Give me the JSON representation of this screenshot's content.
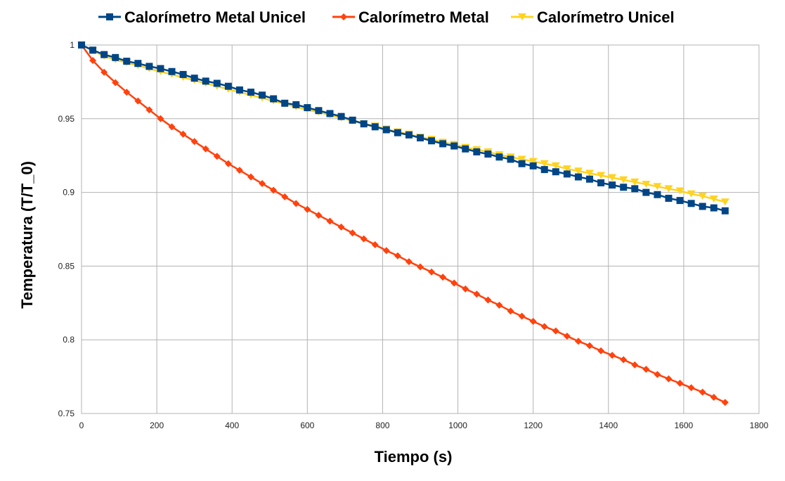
{
  "chart_data": {
    "type": "line",
    "title": "",
    "xlabel": "Tiempo (s)",
    "ylabel": "Temperatura (T/T_0)",
    "xlim": [
      0,
      1800
    ],
    "ylim": [
      0.75,
      1.0
    ],
    "x_ticks": [
      "0",
      "200",
      "400",
      "600",
      "800",
      "1000",
      "1200",
      "1400",
      "1600",
      "1800"
    ],
    "y_ticks": [
      "0.75",
      "0.8",
      "0.85",
      "0.9",
      "0.95",
      "1"
    ],
    "grid": true,
    "legend_position": "top",
    "x": [
      0,
      30,
      60,
      90,
      120,
      150,
      180,
      210,
      240,
      270,
      300,
      330,
      360,
      390,
      420,
      450,
      480,
      510,
      540,
      570,
      600,
      630,
      660,
      690,
      720,
      750,
      780,
      810,
      840,
      870,
      900,
      930,
      960,
      990,
      1020,
      1050,
      1080,
      1110,
      1140,
      1170,
      1200,
      1230,
      1260,
      1290,
      1320,
      1350,
      1380,
      1410,
      1440,
      1470,
      1500,
      1530,
      1560,
      1590,
      1620,
      1650,
      1680,
      1710
    ],
    "series": [
      {
        "name": "Calorímetro Metal Unicel",
        "color": "#004586",
        "marker": "square",
        "values": [
          1.0,
          0.9965,
          0.9935,
          0.9915,
          0.989,
          0.9875,
          0.9855,
          0.984,
          0.982,
          0.98,
          0.9775,
          0.9755,
          0.974,
          0.972,
          0.9695,
          0.968,
          0.966,
          0.9635,
          0.9605,
          0.9595,
          0.9575,
          0.9555,
          0.9535,
          0.9515,
          0.949,
          0.9465,
          0.9445,
          0.9425,
          0.9405,
          0.939,
          0.937,
          0.935,
          0.933,
          0.9315,
          0.9295,
          0.9275,
          0.926,
          0.924,
          0.9225,
          0.9195,
          0.918,
          0.9155,
          0.914,
          0.9125,
          0.9105,
          0.909,
          0.9065,
          0.905,
          0.9035,
          0.9025,
          0.9,
          0.8985,
          0.896,
          0.8945,
          0.8925,
          0.8905,
          0.8895,
          0.8875
        ]
      },
      {
        "name": "Calorímetro Metal",
        "color": "#ff420e",
        "marker": "diamond",
        "values": [
          1.0,
          0.9895,
          0.9815,
          0.9745,
          0.968,
          0.962,
          0.956,
          0.95,
          0.9445,
          0.9395,
          0.9345,
          0.9295,
          0.9245,
          0.9195,
          0.915,
          0.9105,
          0.906,
          0.9015,
          0.897,
          0.8925,
          0.8885,
          0.8845,
          0.8805,
          0.8765,
          0.8725,
          0.8685,
          0.8645,
          0.8605,
          0.857,
          0.853,
          0.8495,
          0.846,
          0.8425,
          0.8385,
          0.8345,
          0.831,
          0.827,
          0.8235,
          0.8195,
          0.816,
          0.8125,
          0.809,
          0.806,
          0.8025,
          0.799,
          0.796,
          0.7925,
          0.7895,
          0.7865,
          0.783,
          0.78,
          0.7765,
          0.7735,
          0.7705,
          0.7675,
          0.7645,
          0.761,
          0.7575
        ]
      },
      {
        "name": "Calorímetro Unicel",
        "color": "#ffd320",
        "marker": "triangle-down",
        "values": [
          1.0,
          0.996,
          0.9925,
          0.99,
          0.988,
          0.986,
          0.984,
          0.982,
          0.98,
          0.978,
          0.976,
          0.974,
          0.972,
          0.97,
          0.968,
          0.966,
          0.964,
          0.962,
          0.96,
          0.958,
          0.956,
          0.9545,
          0.9525,
          0.9505,
          0.9485,
          0.9465,
          0.945,
          0.943,
          0.941,
          0.9395,
          0.9375,
          0.936,
          0.934,
          0.9325,
          0.9305,
          0.929,
          0.9275,
          0.9255,
          0.924,
          0.9225,
          0.921,
          0.9195,
          0.918,
          0.916,
          0.9145,
          0.913,
          0.9115,
          0.91,
          0.9085,
          0.907,
          0.9055,
          0.904,
          0.9025,
          0.901,
          0.899,
          0.8975,
          0.8955,
          0.8935
        ]
      }
    ]
  }
}
